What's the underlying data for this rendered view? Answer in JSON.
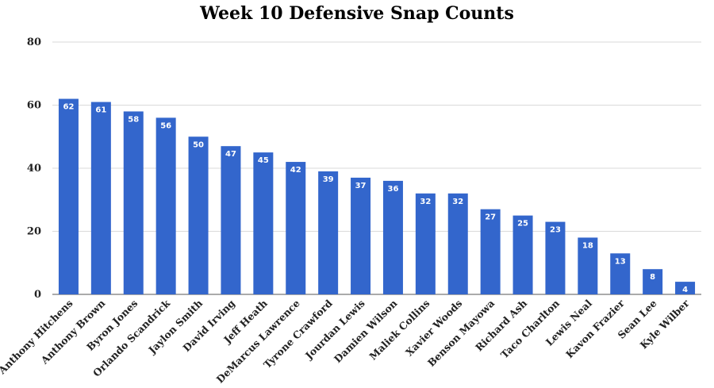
{
  "chart_data": {
    "type": "bar",
    "title": "Week 10 Defensive Snap Counts",
    "xlabel": "",
    "ylabel": "",
    "ylim": [
      0,
      80
    ],
    "yticks": [
      0,
      20,
      40,
      60,
      80
    ],
    "grid": true,
    "legend": "none",
    "bar_color": "#3366cc",
    "data_labels": true,
    "categories": [
      "Anthony Hitchens",
      "Anthony Brown",
      "Byron Jones",
      "Orlando Scandrick",
      "Jaylon Smith",
      "David Irving",
      "Jeff Heath",
      "DeMarcus Lawrence",
      "Tyrone Crawford",
      "Jourdan Lewis",
      "Damien Wilson",
      "Maliek Collins",
      "Xavier Woods",
      "Benson Mayowa",
      "Richard Ash",
      "Taco Charlton",
      "Lewis Neal",
      "Kavon Frazier",
      "Sean Lee",
      "Kyle Wilber"
    ],
    "values": [
      62,
      61,
      58,
      56,
      50,
      47,
      45,
      42,
      39,
      37,
      36,
      32,
      32,
      27,
      25,
      23,
      18,
      13,
      8,
      4
    ]
  }
}
